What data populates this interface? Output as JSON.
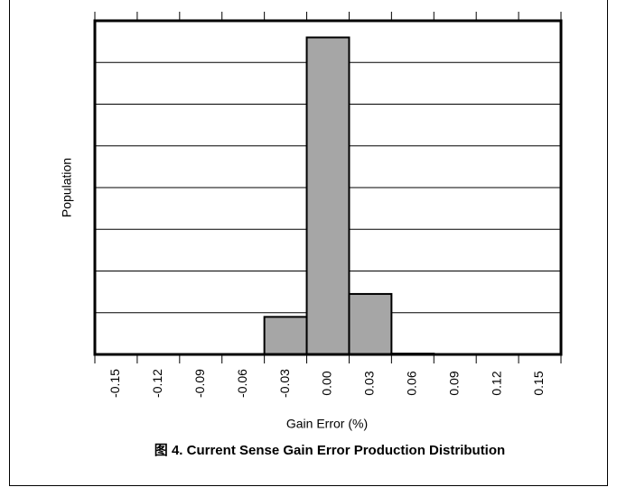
{
  "chart_data": {
    "type": "histogram",
    "title": "图 4. Current Sense Gain Error Production Distribution",
    "x_label": "Gain Error (%)",
    "y_label": "Population",
    "bins": [
      -0.165,
      -0.135,
      -0.105,
      -0.075,
      -0.045,
      -0.015,
      0.015,
      0.045,
      0.075,
      0.105,
      0.135,
      0.165
    ],
    "counts": [
      0,
      0,
      0,
      0,
      0.9,
      7.6,
      1.45,
      0.02,
      0,
      0,
      0
    ],
    "color": "#a6a6a6",
    "xlim": [
      -0.165,
      0.165
    ],
    "xticks": [
      -0.15,
      -0.12,
      -0.09,
      -0.06,
      -0.03,
      {
        "value": 0,
        "label": "0.00"
      },
      0.03,
      0.06,
      0.09,
      0.12,
      0.15
    ],
    "ylim": [
      0,
      8
    ],
    "yticks": [
      0,
      1,
      2,
      3,
      4,
      5,
      6,
      7,
      8
    ],
    "grid": true
  }
}
